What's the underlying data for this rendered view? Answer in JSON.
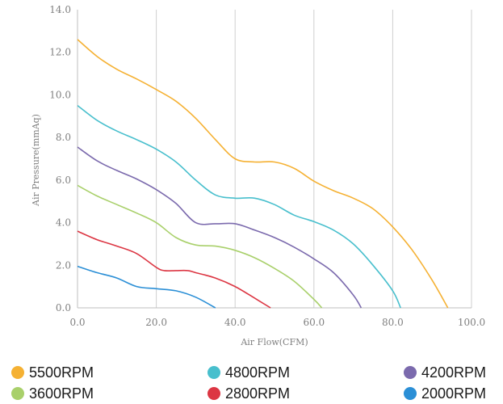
{
  "chart_data": {
    "type": "line",
    "title": "",
    "xlabel": "Air Flow(CFM)",
    "ylabel": "Air Pressure(mmAq)",
    "xlim": [
      0,
      100
    ],
    "ylim": [
      0,
      14
    ],
    "x_ticks": [
      "0.0",
      "20.0",
      "40.0",
      "60.0",
      "80.0",
      "100.0"
    ],
    "y_ticks": [
      "0.0",
      "2.0",
      "4.0",
      "6.0",
      "8.0",
      "10.0",
      "12.0",
      "14.0"
    ],
    "grid": "vertical",
    "legend_position": "bottom",
    "series": [
      {
        "name": "5500RPM",
        "color": "#f5b133",
        "points": [
          [
            0,
            12.6
          ],
          [
            5,
            11.8
          ],
          [
            10,
            11.2
          ],
          [
            15,
            10.75
          ],
          [
            20,
            10.25
          ],
          [
            25,
            9.7
          ],
          [
            30,
            8.9
          ],
          [
            35,
            7.9
          ],
          [
            40,
            7.0
          ],
          [
            45,
            6.85
          ],
          [
            50,
            6.85
          ],
          [
            55,
            6.55
          ],
          [
            60,
            5.95
          ],
          [
            65,
            5.5
          ],
          [
            70,
            5.15
          ],
          [
            75,
            4.65
          ],
          [
            80,
            3.8
          ],
          [
            85,
            2.7
          ],
          [
            90,
            1.3
          ],
          [
            94,
            0
          ]
        ]
      },
      {
        "name": "4800RPM",
        "color": "#48bfcd",
        "points": [
          [
            0,
            9.5
          ],
          [
            5,
            8.8
          ],
          [
            10,
            8.3
          ],
          [
            15,
            7.9
          ],
          [
            20,
            7.45
          ],
          [
            25,
            6.85
          ],
          [
            30,
            6.0
          ],
          [
            35,
            5.3
          ],
          [
            40,
            5.15
          ],
          [
            45,
            5.15
          ],
          [
            50,
            4.85
          ],
          [
            55,
            4.35
          ],
          [
            60,
            4.05
          ],
          [
            65,
            3.65
          ],
          [
            70,
            3.0
          ],
          [
            75,
            2.0
          ],
          [
            80,
            0.8
          ],
          [
            82,
            0
          ]
        ]
      },
      {
        "name": "4200RPM",
        "color": "#7b6aad",
        "points": [
          [
            0,
            7.55
          ],
          [
            5,
            6.9
          ],
          [
            10,
            6.45
          ],
          [
            15,
            6.05
          ],
          [
            20,
            5.55
          ],
          [
            25,
            4.9
          ],
          [
            30,
            4.0
          ],
          [
            35,
            3.95
          ],
          [
            40,
            3.95
          ],
          [
            45,
            3.65
          ],
          [
            50,
            3.3
          ],
          [
            55,
            2.85
          ],
          [
            60,
            2.3
          ],
          [
            65,
            1.65
          ],
          [
            70,
            0.6
          ],
          [
            72,
            0
          ]
        ]
      },
      {
        "name": "3600RPM",
        "color": "#a9d06b",
        "points": [
          [
            0,
            5.75
          ],
          [
            5,
            5.25
          ],
          [
            10,
            4.85
          ],
          [
            15,
            4.45
          ],
          [
            20,
            4.0
          ],
          [
            25,
            3.3
          ],
          [
            30,
            2.95
          ],
          [
            35,
            2.9
          ],
          [
            40,
            2.7
          ],
          [
            45,
            2.35
          ],
          [
            50,
            1.85
          ],
          [
            55,
            1.25
          ],
          [
            60,
            0.4
          ],
          [
            62,
            0
          ]
        ]
      },
      {
        "name": "2800RPM",
        "color": "#dc3643",
        "points": [
          [
            0,
            3.6
          ],
          [
            5,
            3.2
          ],
          [
            10,
            2.9
          ],
          [
            15,
            2.55
          ],
          [
            20,
            1.9
          ],
          [
            22,
            1.75
          ],
          [
            25,
            1.75
          ],
          [
            28,
            1.75
          ],
          [
            30,
            1.65
          ],
          [
            35,
            1.4
          ],
          [
            40,
            1.0
          ],
          [
            45,
            0.45
          ],
          [
            49,
            0
          ]
        ]
      },
      {
        "name": "2000RPM",
        "color": "#2b8fd6",
        "points": [
          [
            0,
            1.95
          ],
          [
            5,
            1.65
          ],
          [
            10,
            1.4
          ],
          [
            15,
            1.0
          ],
          [
            20,
            0.9
          ],
          [
            25,
            0.8
          ],
          [
            30,
            0.5
          ],
          [
            35,
            0
          ]
        ]
      }
    ]
  },
  "legend": {
    "items": [
      {
        "label": "5500RPM",
        "color": "#f5b133"
      },
      {
        "label": "4800RPM",
        "color": "#48bfcd"
      },
      {
        "label": "4200RPM",
        "color": "#7b6aad"
      },
      {
        "label": "3600RPM",
        "color": "#a9d06b"
      },
      {
        "label": "2800RPM",
        "color": "#dc3643"
      },
      {
        "label": "2000RPM",
        "color": "#2b8fd6"
      }
    ]
  }
}
